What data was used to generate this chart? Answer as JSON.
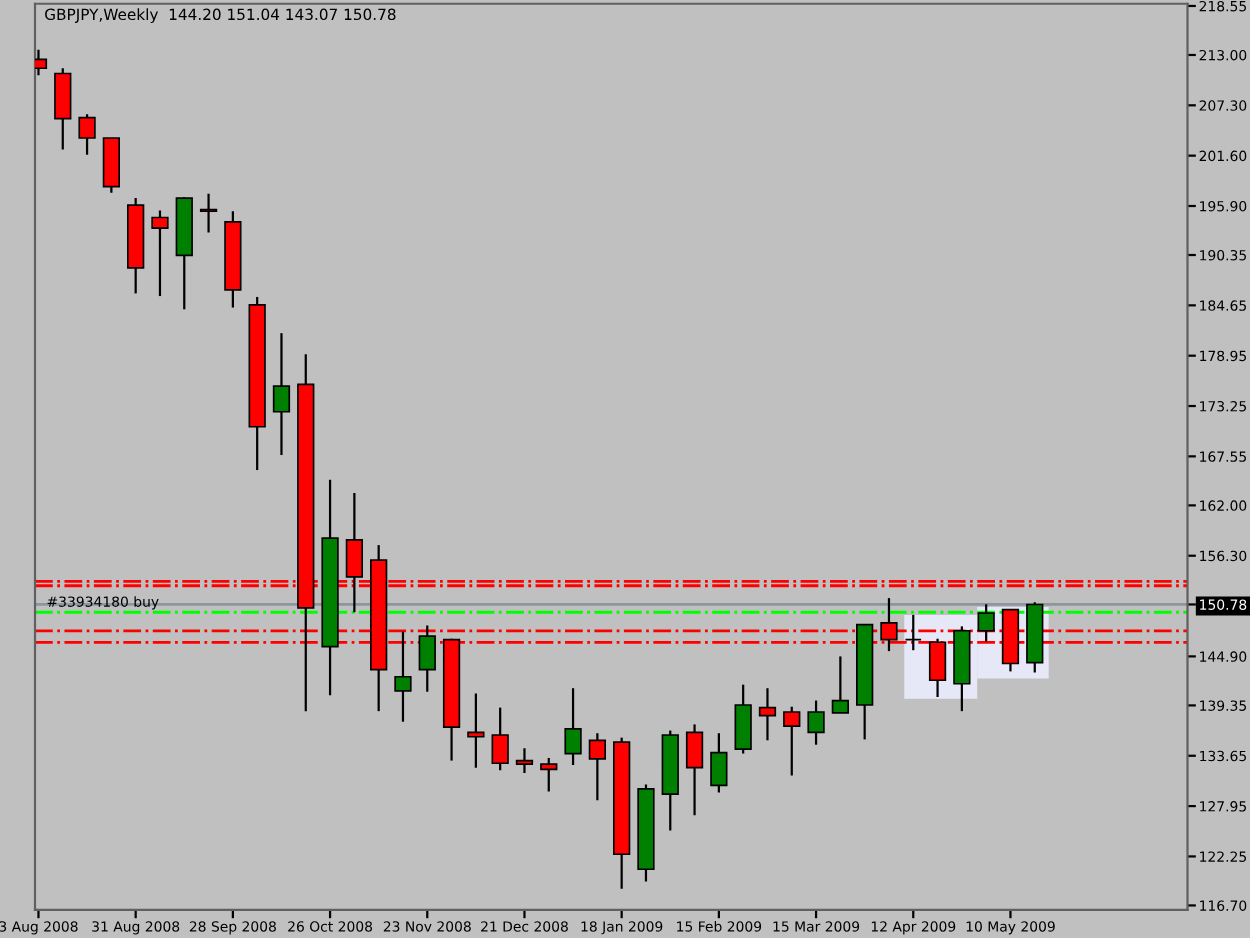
{
  "chart_data": {
    "type": "candlestick",
    "title": "GBPJPY,Weekly  144.20 151.04 143.07 150.78",
    "x": [
      "2008-08-03",
      "2008-08-10",
      "2008-08-17",
      "2008-08-24",
      "2008-08-31",
      "2008-09-07",
      "2008-09-14",
      "2008-09-21",
      "2008-09-28",
      "2008-10-05",
      "2008-10-12",
      "2008-10-19",
      "2008-10-26",
      "2008-11-02",
      "2008-11-09",
      "2008-11-16",
      "2008-11-23",
      "2008-11-30",
      "2008-12-07",
      "2008-12-14",
      "2008-12-21",
      "2008-12-28",
      "2009-01-04",
      "2009-01-11",
      "2009-01-18",
      "2009-01-25",
      "2009-02-01",
      "2009-02-08",
      "2009-02-15",
      "2009-02-22",
      "2009-03-01",
      "2009-03-08",
      "2009-03-15",
      "2009-03-22",
      "2009-03-29",
      "2009-04-05",
      "2009-04-12",
      "2009-04-19",
      "2009-04-26",
      "2009-05-03",
      "2009-05-10",
      "2009-05-17"
    ],
    "ohlc": [
      [
        212.5,
        213.6,
        210.7,
        211.5
      ],
      [
        210.9,
        211.5,
        202.3,
        205.8
      ],
      [
        205.9,
        206.3,
        201.7,
        203.6
      ],
      [
        203.6,
        203.6,
        197.4,
        198.1
      ],
      [
        196.0,
        196.8,
        186.0,
        188.9
      ],
      [
        194.6,
        195.4,
        185.7,
        193.4
      ],
      [
        190.3,
        196.9,
        184.2,
        196.8
      ],
      [
        195.5,
        197.3,
        192.9,
        195.3
      ],
      [
        194.1,
        195.3,
        184.4,
        186.4
      ],
      [
        184.7,
        185.6,
        166.0,
        170.9
      ],
      [
        172.6,
        181.5,
        167.7,
        175.5
      ],
      [
        175.7,
        179.1,
        138.7,
        150.4
      ],
      [
        146.0,
        164.9,
        140.5,
        158.3
      ],
      [
        158.1,
        163.4,
        149.9,
        153.9
      ],
      [
        155.8,
        157.5,
        138.7,
        143.4
      ],
      [
        141.0,
        147.7,
        137.5,
        142.6
      ],
      [
        143.4,
        148.4,
        140.9,
        147.2
      ],
      [
        146.8,
        146.9,
        133.1,
        136.9
      ],
      [
        136.3,
        140.7,
        132.3,
        135.8
      ],
      [
        136.0,
        139.1,
        132.0,
        132.8
      ],
      [
        133.1,
        134.5,
        131.7,
        132.7
      ],
      [
        132.7,
        133.4,
        129.6,
        132.1
      ],
      [
        133.9,
        141.3,
        132.6,
        136.7
      ],
      [
        135.4,
        136.2,
        128.6,
        133.3
      ],
      [
        135.2,
        135.7,
        118.6,
        122.5
      ],
      [
        120.8,
        130.4,
        119.4,
        129.9
      ],
      [
        129.3,
        136.5,
        125.2,
        136.0
      ],
      [
        136.3,
        137.2,
        126.9,
        132.3
      ],
      [
        130.3,
        136.2,
        129.5,
        134.0
      ],
      [
        134.4,
        141.7,
        133.9,
        139.4
      ],
      [
        139.1,
        141.3,
        135.4,
        138.2
      ],
      [
        138.6,
        139.2,
        131.4,
        137.0
      ],
      [
        136.3,
        139.9,
        134.9,
        138.6
      ],
      [
        138.5,
        144.9,
        138.5,
        139.9
      ],
      [
        139.4,
        148.5,
        135.5,
        148.5
      ],
      [
        148.7,
        151.5,
        145.5,
        146.8
      ],
      [
        146.8,
        149.6,
        145.6,
        146.8
      ],
      [
        146.5,
        146.9,
        140.3,
        142.2
      ],
      [
        141.8,
        148.3,
        138.7,
        147.8
      ],
      [
        147.8,
        150.8,
        146.6,
        149.8
      ],
      [
        150.2,
        150.2,
        143.2,
        144.1
      ],
      [
        144.2,
        151.04,
        143.07,
        150.78
      ]
    ],
    "colors": [
      "#ff0000",
      "#ff0000",
      "#ff0000",
      "#ff0000",
      "#ff0000",
      "#ff0000",
      "#008000",
      "#ff0000",
      "#ff0000",
      "#ff0000",
      "#008000",
      "#ff0000",
      "#008000",
      "#ff0000",
      "#ff0000",
      "#008000",
      "#008000",
      "#ff0000",
      "#ff0000",
      "#ff0000",
      "#ff0000",
      "#ff0000",
      "#008000",
      "#ff0000",
      "#ff0000",
      "#008000",
      "#008000",
      "#ff0000",
      "#008000",
      "#008000",
      "#ff0000",
      "#ff0000",
      "#008000",
      "#008000",
      "#008000",
      "#ff0000",
      "#000000",
      "#ff0000",
      "#008000",
      "#008000",
      "#ff0000",
      "#008000"
    ],
    "xlim": [
      "2008-08-02",
      "2009-06-30"
    ],
    "xticks": [
      {
        "value": "2008-08-03",
        "label": "3 Aug 2008"
      },
      {
        "value": "2008-08-31",
        "label": "31 Aug 2008"
      },
      {
        "value": "2008-09-28",
        "label": "28 Sep 2008"
      },
      {
        "value": "2008-10-26",
        "label": "26 Oct 2008"
      },
      {
        "value": "2008-11-23",
        "label": "23 Nov 2008"
      },
      {
        "value": "2008-12-21",
        "label": "21 Dec 2008"
      },
      {
        "value": "2009-01-18",
        "label": "18 Jan 2009"
      },
      {
        "value": "2009-02-15",
        "label": "15 Feb 2009"
      },
      {
        "value": "2009-03-15",
        "label": "15 Mar 2009"
      },
      {
        "value": "2009-04-12",
        "label": "12 Apr 2009"
      },
      {
        "value": "2009-05-10",
        "label": "10 May 2009"
      }
    ],
    "ylim": [
      116.2,
      218.8
    ],
    "yticks": [
      {
        "value": 218.55,
        "label": "218.55"
      },
      {
        "value": 213.0,
        "label": "213.00"
      },
      {
        "value": 207.3,
        "label": "207.30"
      },
      {
        "value": 201.6,
        "label": "201.60"
      },
      {
        "value": 195.9,
        "label": "195.90"
      },
      {
        "value": 190.35,
        "label": "190.35"
      },
      {
        "value": 184.65,
        "label": "184.65"
      },
      {
        "value": 178.95,
        "label": "178.95"
      },
      {
        "value": 173.25,
        "label": "173.25"
      },
      {
        "value": 167.55,
        "label": "167.55"
      },
      {
        "value": 162.0,
        "label": "162.00"
      },
      {
        "value": 156.3,
        "label": "156.30"
      },
      {
        "value": 150.78,
        "label": "150.78"
      },
      {
        "value": 144.9,
        "label": "144.90"
      },
      {
        "value": 139.35,
        "label": "139.35"
      },
      {
        "value": 133.65,
        "label": "133.65"
      },
      {
        "value": 127.95,
        "label": "127.95"
      },
      {
        "value": 122.25,
        "label": "122.25"
      },
      {
        "value": 116.7,
        "label": "116.70"
      }
    ],
    "ref_lines": [
      {
        "axis": "y",
        "value": 153.4,
        "color": "#ff0000",
        "line_style": "dashdot"
      },
      {
        "axis": "y",
        "value": 152.9,
        "color": "#ff0000",
        "line_style": "dashdot"
      },
      {
        "axis": "y",
        "value": 150.78,
        "color": "#8c96a0",
        "line_style": "solid"
      },
      {
        "axis": "y",
        "value": 149.9,
        "label": "#33934180 buy",
        "color": "#00ff00",
        "line_style": "dashdot"
      },
      {
        "axis": "y",
        "value": 147.8,
        "color": "#ff0000",
        "line_style": "dashdot"
      },
      {
        "axis": "y",
        "value": 146.5,
        "color": "#ff0000",
        "line_style": "dashdot"
      }
    ],
    "grid": false
  }
}
